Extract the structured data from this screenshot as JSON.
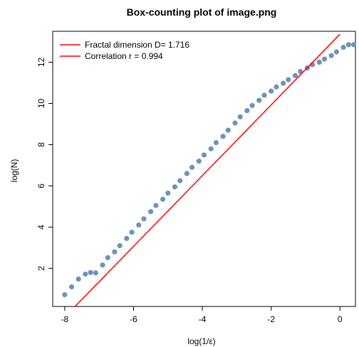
{
  "chart_data": {
    "type": "scatter",
    "title": "Box-counting plot of image.png",
    "xlabel": "log(1/ε)",
    "ylabel": "log(N)",
    "xlim": [
      -8.35,
      0.45
    ],
    "ylim": [
      0.15,
      13.5
    ],
    "x_ticks": [
      -8,
      -6,
      -4,
      -2,
      0
    ],
    "y_ticks": [
      2,
      4,
      6,
      8,
      10,
      12
    ],
    "grid": false,
    "legend_position": "top-left",
    "legend": [
      "Fractal dimension D= 1.716",
      "Correlation r = 0.994"
    ],
    "series": [
      {
        "marker": "filled-circle",
        "color": "#7092b8",
        "x": [
          -8.0,
          -7.8,
          -7.6,
          -7.4,
          -7.25,
          -7.1,
          -6.9,
          -6.75,
          -6.55,
          -6.4,
          -6.2,
          -6.05,
          -5.85,
          -5.7,
          -5.5,
          -5.35,
          -5.15,
          -5.0,
          -4.8,
          -4.65,
          -4.45,
          -4.3,
          -4.1,
          -3.95,
          -3.75,
          -3.6,
          -3.4,
          -3.25,
          -3.05,
          -2.9,
          -2.7,
          -2.55,
          -2.35,
          -2.2,
          -2.0,
          -1.85,
          -1.65,
          -1.5,
          -1.3,
          -1.15,
          -0.95,
          -0.8,
          -0.6,
          -0.45,
          -0.25,
          -0.1,
          0.1,
          0.25,
          0.4
        ],
        "y": [
          0.72,
          1.1,
          1.48,
          1.72,
          1.8,
          1.78,
          2.16,
          2.52,
          2.8,
          3.1,
          3.45,
          3.75,
          4.1,
          4.4,
          4.75,
          5.05,
          5.35,
          5.65,
          5.95,
          6.25,
          6.6,
          6.9,
          7.2,
          7.5,
          7.8,
          8.1,
          8.4,
          8.7,
          9.05,
          9.35,
          9.65,
          9.9,
          10.15,
          10.4,
          10.6,
          10.8,
          10.98,
          11.15,
          11.35,
          11.55,
          11.72,
          11.88,
          12.0,
          12.15,
          12.32,
          12.5,
          12.72,
          12.85,
          12.85
        ]
      }
    ],
    "fit_line": {
      "color": "#ff0000",
      "x": [
        -7.7,
        0.0
      ],
      "y": [
        0.15,
        13.36
      ]
    }
  }
}
